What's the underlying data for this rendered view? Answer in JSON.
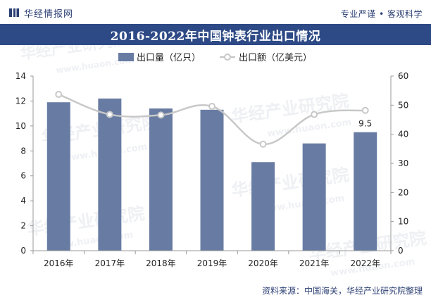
{
  "header": {
    "logo_text": "华经情报网",
    "slogan": "专业严谨 • 客观科学"
  },
  "chart_data": {
    "type": "bar+line",
    "title": "2016-2022年中国钟表行业出口情况",
    "categories": [
      "2016年",
      "2017年",
      "2018年",
      "2019年",
      "2020年",
      "2021年",
      "2022年"
    ],
    "series": [
      {
        "name": "出口量（亿只）",
        "type": "bar",
        "axis": "left",
        "color": "#687ca3",
        "values": [
          11.9,
          12.2,
          11.4,
          11.3,
          7.1,
          8.6,
          9.5
        ]
      },
      {
        "name": "出口额（亿美元）",
        "type": "line",
        "axis": "right",
        "color": "#c8c8c8",
        "values": [
          53.7,
          46.8,
          46.6,
          49.6,
          36.6,
          46.8,
          48.2
        ]
      }
    ],
    "data_labels": [
      {
        "series": 0,
        "index": 6,
        "text": "9.5"
      }
    ],
    "y_left": {
      "min": 0,
      "max": 14,
      "ticks": [
        0,
        2,
        4,
        6,
        8,
        10,
        12,
        14
      ]
    },
    "y_right": {
      "min": 0,
      "max": 60,
      "ticks": [
        0,
        10,
        20,
        30,
        40,
        50,
        60
      ]
    },
    "legend_position": "top-center",
    "grid": false
  },
  "watermarks": [
    "华经产业研究院",
    "www.huaon.com"
  ],
  "footer": {
    "source": "资料来源：中国海关，华经产业研究院整理"
  }
}
